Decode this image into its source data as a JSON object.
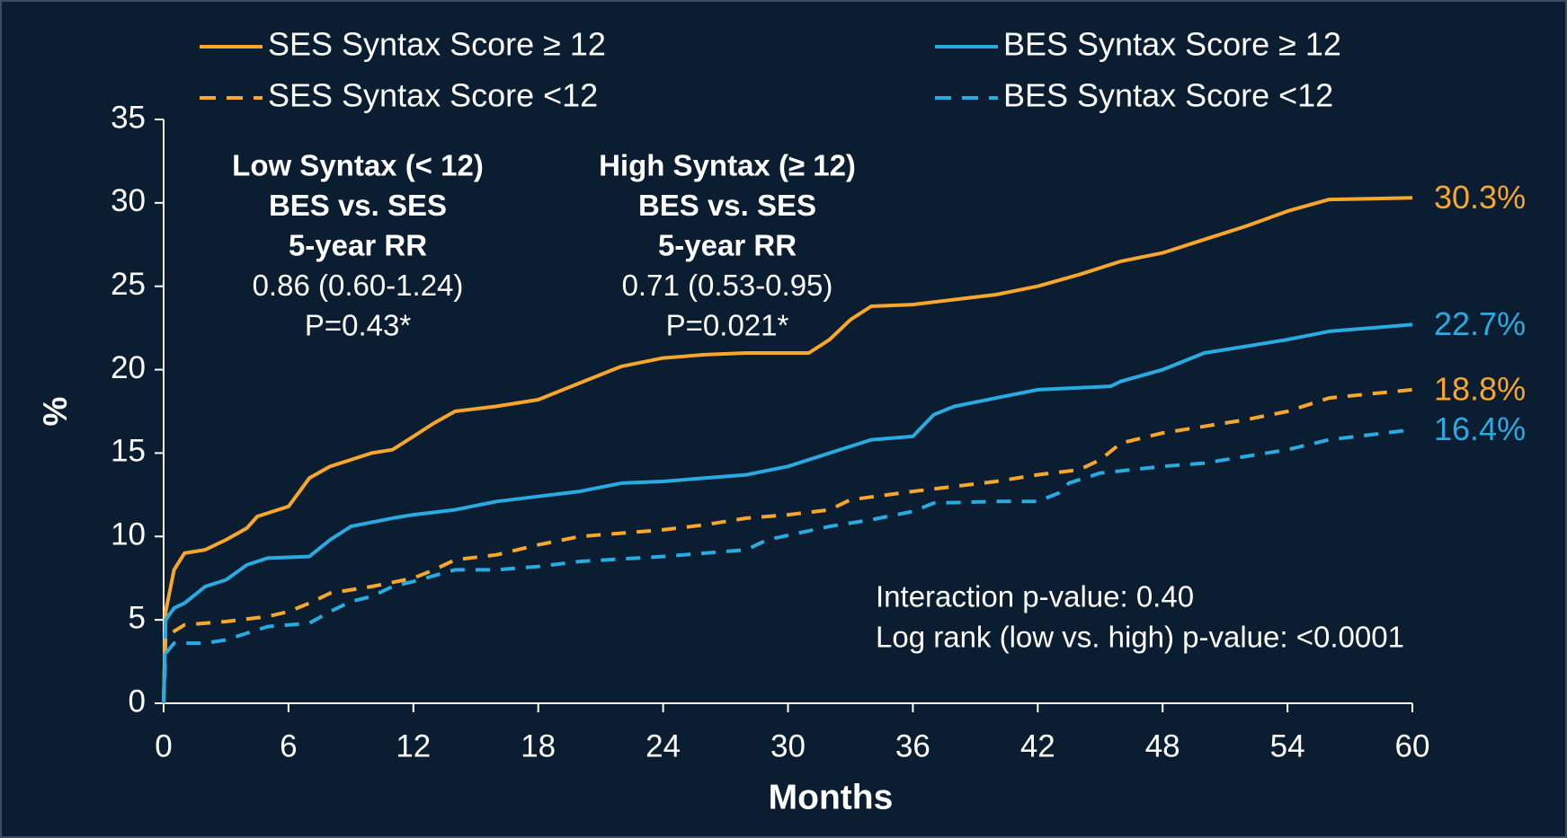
{
  "chart_data": {
    "type": "line",
    "x_label": "Months",
    "y_label": "%",
    "xlim": [
      0,
      60
    ],
    "xticks": [
      0,
      6,
      12,
      18,
      24,
      30,
      36,
      42,
      48,
      54,
      60
    ],
    "ylim": [
      0,
      35
    ],
    "yticks": [
      0,
      5,
      10,
      15,
      20,
      25,
      30,
      35
    ],
    "series": [
      {
        "name": "SES Syntax Score ≥ 12",
        "color": "#f9a72b",
        "dashed": false,
        "end_label": "30.3%",
        "x": [
          0,
          0.1,
          0.5,
          1,
          2,
          3,
          4,
          4.5,
          6,
          7,
          8,
          9,
          10,
          11,
          12,
          13,
          14,
          16,
          18,
          20,
          22,
          24,
          26,
          28,
          31,
          32,
          33,
          34,
          36,
          40,
          42,
          44,
          46,
          48,
          50,
          52,
          54,
          56,
          60
        ],
        "values": [
          0,
          5.5,
          8,
          9,
          9.2,
          9.8,
          10.5,
          11.2,
          11.8,
          13.5,
          14.2,
          14.6,
          15,
          15.2,
          16,
          16.8,
          17.5,
          17.8,
          18.2,
          19.2,
          20.2,
          20.7,
          20.9,
          21,
          21,
          21.8,
          23,
          23.8,
          23.9,
          24.5,
          25,
          25.7,
          26.5,
          27,
          27.8,
          28.6,
          29.5,
          30.2,
          30.3
        ]
      },
      {
        "name": "BES Syntax Score ≥ 12",
        "color": "#29abe2",
        "dashed": false,
        "end_label": "22.7%",
        "x": [
          0,
          0.1,
          0.5,
          1,
          2,
          3,
          4,
          5,
          7,
          8,
          9,
          11,
          12,
          14,
          16,
          18,
          20,
          22,
          24,
          26,
          28,
          30,
          32,
          34,
          36,
          37,
          38,
          40,
          42,
          45.5,
          46,
          48,
          50,
          52,
          54,
          56,
          60
        ],
        "values": [
          0,
          5,
          5.7,
          6,
          7,
          7.4,
          8.3,
          8.7,
          8.8,
          9.8,
          10.6,
          11.1,
          11.3,
          11.6,
          12.1,
          12.4,
          12.7,
          13.2,
          13.3,
          13.5,
          13.7,
          14.2,
          15,
          15.8,
          16,
          17.3,
          17.8,
          18.3,
          18.8,
          19,
          19.3,
          20,
          21,
          21.4,
          21.8,
          22.3,
          22.7
        ]
      },
      {
        "name": "SES Syntax Score <12",
        "color": "#f9a72b",
        "dashed": true,
        "end_label": "18.8%",
        "x": [
          0,
          0.1,
          1,
          3,
          5,
          6,
          7,
          8,
          10,
          12,
          13,
          14,
          16,
          18,
          20,
          22,
          24,
          26,
          28,
          30,
          32,
          33,
          36,
          38,
          40,
          42,
          44,
          45,
          46,
          48,
          50,
          52,
          54,
          56,
          60
        ],
        "values": [
          0,
          4,
          4.7,
          4.9,
          5.2,
          5.5,
          6,
          6.6,
          7,
          7.5,
          8,
          8.6,
          8.9,
          9.5,
          10,
          10.2,
          10.4,
          10.7,
          11.1,
          11.3,
          11.6,
          12.2,
          12.7,
          13,
          13.3,
          13.7,
          14,
          14.6,
          15.6,
          16.2,
          16.6,
          17,
          17.5,
          18.3,
          18.8
        ]
      },
      {
        "name": "BES Syntax Score <12",
        "color": "#29abe2",
        "dashed": true,
        "end_label": "16.4%",
        "x": [
          0,
          0.1,
          0.5,
          2,
          3,
          4,
          5,
          7,
          8,
          9,
          10,
          11,
          12,
          14,
          16,
          18,
          20,
          24,
          28,
          29,
          32,
          34,
          36,
          37,
          40,
          42,
          43,
          43.5,
          45,
          48,
          50,
          52,
          54,
          56,
          60
        ],
        "values": [
          0,
          3,
          3.6,
          3.6,
          3.8,
          4.2,
          4.6,
          4.8,
          5.5,
          6.1,
          6.4,
          7,
          7.3,
          8,
          8,
          8.2,
          8.5,
          8.8,
          9.2,
          9.8,
          10.6,
          11,
          11.5,
          12,
          12.1,
          12.1,
          12.6,
          13.2,
          13.8,
          14.2,
          14.4,
          14.8,
          15.2,
          15.8,
          16.4
        ]
      }
    ],
    "annotations": [
      {
        "lines": [
          {
            "text": "Low Syntax (< 12)",
            "bold": true
          },
          {
            "text": "BES vs. SES",
            "bold": true
          },
          {
            "text": "5-year RR",
            "bold": true
          },
          {
            "text": "0.86 (0.60-1.24)",
            "bold": false
          },
          {
            "text": "P=0.43*",
            "bold": false
          }
        ]
      },
      {
        "lines": [
          {
            "text": "High Syntax (≥ 12)",
            "bold": true
          },
          {
            "text": "BES vs. SES",
            "bold": true
          },
          {
            "text": "5-year RR",
            "bold": true
          },
          {
            "text": "0.71 (0.53-0.95)",
            "bold": false
          },
          {
            "text": "P=0.021*",
            "bold": false
          }
        ]
      },
      {
        "lines": [
          {
            "text": "Interaction p-value: 0.40",
            "bold": false
          },
          {
            "text": "Log rank  (low vs. high) p-value: <0.0001",
            "bold": false
          }
        ]
      }
    ]
  }
}
